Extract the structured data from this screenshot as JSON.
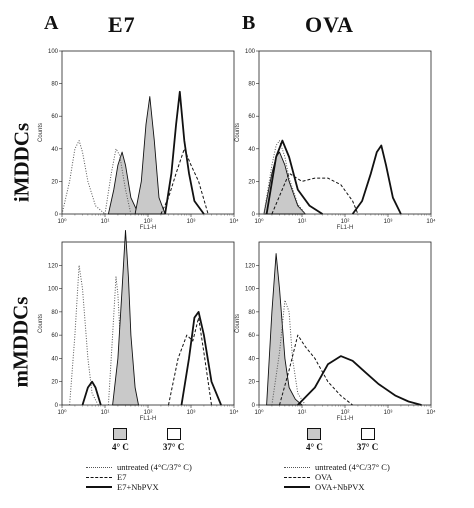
{
  "panels": {
    "A": {
      "letter": "A",
      "title": "E7"
    },
    "B": {
      "letter": "B",
      "title": "OVA"
    }
  },
  "rows": {
    "top": "iMDDCs",
    "bottom": "mMDDCs"
  },
  "axis": {
    "xlabel": "FL1-H",
    "ylabel": "Counts"
  },
  "temperature_key": {
    "A": {
      "cold": "4° C",
      "warm": "37° C"
    },
    "B": {
      "cold": "4° C",
      "warm": "37° C"
    }
  },
  "legend": {
    "A": [
      "untreated (4°C/37° C)",
      "E7",
      "E7+NbPVX"
    ],
    "B": [
      "untreated (4°C/37° C)",
      "OVA",
      "OVA+NbPVX"
    ]
  },
  "colors": {
    "fill": "#c9c9c9",
    "line": "#111111",
    "dotted": "#555555"
  },
  "chart_data": [
    {
      "type": "area",
      "panel": "A",
      "row": "iMDDCs",
      "xlabel": "FL1-H",
      "ylabel": "Counts",
      "xscale": "log",
      "xlim": [
        1,
        10000
      ],
      "ylim": [
        0,
        100
      ],
      "yticks": [
        0,
        20,
        40,
        60,
        80,
        100
      ],
      "xticks": [
        "10⁰",
        "10¹",
        "10²",
        "10³",
        "10⁴"
      ],
      "series": [
        {
          "style": "dotted",
          "x": [
            1,
            1.5,
            2,
            2.5,
            3,
            4,
            6,
            10
          ],
          "y": [
            0,
            20,
            40,
            45,
            38,
            20,
            5,
            0
          ]
        },
        {
          "style": "filled",
          "x": [
            12,
            16,
            20,
            25,
            30,
            40,
            60
          ],
          "y": [
            0,
            15,
            30,
            38,
            30,
            10,
            0
          ]
        },
        {
          "style": "dotted",
          "x": [
            10,
            14,
            18,
            22,
            30,
            40
          ],
          "y": [
            0,
            25,
            40,
            36,
            15,
            0
          ]
        },
        {
          "style": "filled",
          "x": [
            50,
            70,
            90,
            110,
            140,
            180,
            250
          ],
          "y": [
            0,
            20,
            55,
            72,
            45,
            10,
            0
          ]
        },
        {
          "style": "dashed",
          "x": [
            200,
            300,
            450,
            700,
            1000,
            1500,
            2500
          ],
          "y": [
            0,
            10,
            25,
            40,
            30,
            20,
            0
          ]
        },
        {
          "style": "solid",
          "x": [
            250,
            350,
            450,
            550,
            700,
            900,
            1200,
            2000
          ],
          "y": [
            0,
            25,
            55,
            75,
            45,
            25,
            8,
            0
          ]
        }
      ]
    },
    {
      "type": "area",
      "panel": "B",
      "row": "iMDDCs",
      "xlabel": "FL1-H",
      "ylabel": "Counts",
      "xscale": "log",
      "xlim": [
        1,
        10000
      ],
      "ylim": [
        0,
        100
      ],
      "yticks": [
        0,
        20,
        40,
        60,
        80,
        100
      ],
      "xticks": [
        "10⁰",
        "10¹",
        "10²",
        "10³",
        "10⁴"
      ],
      "series": [
        {
          "style": "filled",
          "x": [
            1.3,
            2,
            2.5,
            3,
            4,
            5,
            8,
            12
          ],
          "y": [
            0,
            25,
            35,
            38,
            30,
            20,
            5,
            0
          ]
        },
        {
          "style": "dotted",
          "x": [
            1.3,
            2,
            2.5,
            3,
            4,
            5,
            8,
            12
          ],
          "y": [
            0,
            30,
            42,
            45,
            35,
            22,
            6,
            0
          ]
        },
        {
          "style": "solid",
          "x": [
            1.5,
            2.5,
            3.5,
            5,
            8,
            15,
            30
          ],
          "y": [
            0,
            35,
            45,
            35,
            15,
            5,
            0
          ]
        },
        {
          "style": "dashed",
          "x": [
            2,
            5,
            10,
            20,
            40,
            80,
            150,
            200
          ],
          "y": [
            0,
            25,
            20,
            22,
            22,
            18,
            8,
            0
          ]
        },
        {
          "style": "solid",
          "x": [
            150,
            250,
            400,
            550,
            700,
            900,
            1300,
            2000
          ],
          "y": [
            0,
            8,
            25,
            38,
            42,
            30,
            10,
            0
          ]
        }
      ]
    },
    {
      "type": "area",
      "panel": "A",
      "row": "mMDDCs",
      "xlabel": "FL1-H",
      "ylabel": "Counts",
      "xscale": "log",
      "xlim": [
        1,
        10000
      ],
      "ylim": [
        0,
        140
      ],
      "yticks": [
        0,
        20,
        40,
        60,
        80,
        100,
        120
      ],
      "xticks": [
        "10⁰",
        "10¹",
        "10²",
        "10³",
        "10⁴"
      ],
      "series": [
        {
          "style": "dotted",
          "x": [
            1.5,
            2,
            2.5,
            3,
            4,
            5,
            7
          ],
          "y": [
            0,
            60,
            120,
            100,
            40,
            10,
            0
          ]
        },
        {
          "style": "solid",
          "x": [
            3,
            4,
            5,
            6,
            8
          ],
          "y": [
            0,
            15,
            20,
            15,
            0
          ]
        },
        {
          "style": "dotted",
          "x": [
            12,
            15,
            18,
            20,
            24,
            30
          ],
          "y": [
            0,
            60,
            110,
            95,
            40,
            0
          ]
        },
        {
          "style": "filled",
          "x": [
            15,
            20,
            25,
            30,
            35,
            40,
            50,
            60
          ],
          "y": [
            0,
            40,
            100,
            150,
            110,
            60,
            15,
            0
          ]
        },
        {
          "style": "dashed",
          "x": [
            300,
            500,
            800,
            1100,
            1500,
            2000,
            3000
          ],
          "y": [
            0,
            40,
            60,
            55,
            75,
            45,
            0
          ]
        },
        {
          "style": "solid",
          "x": [
            600,
            900,
            1200,
            1500,
            2000,
            3000,
            5000
          ],
          "y": [
            0,
            40,
            75,
            80,
            60,
            20,
            0
          ]
        }
      ]
    },
    {
      "type": "area",
      "panel": "B",
      "row": "mMDDCs",
      "xlabel": "FL1-H",
      "ylabel": "Counts",
      "xscale": "log",
      "xlim": [
        1,
        10000
      ],
      "ylim": [
        0,
        140
      ],
      "yticks": [
        0,
        20,
        40,
        60,
        80,
        100,
        120
      ],
      "xticks": [
        "10⁰",
        "10¹",
        "10²",
        "10³",
        "10⁴"
      ],
      "series": [
        {
          "style": "filled",
          "x": [
            1.5,
            2,
            2.5,
            3,
            4,
            5,
            7,
            10
          ],
          "y": [
            0,
            80,
            130,
            100,
            40,
            15,
            5,
            0
          ]
        },
        {
          "style": "dotted",
          "x": [
            2,
            3,
            4,
            5,
            6,
            8,
            12
          ],
          "y": [
            0,
            45,
            90,
            80,
            40,
            10,
            0
          ]
        },
        {
          "style": "dashed",
          "x": [
            3,
            5,
            8,
            12,
            20,
            40,
            80,
            150
          ],
          "y": [
            0,
            30,
            60,
            50,
            40,
            20,
            8,
            0
          ]
        },
        {
          "style": "solid",
          "x": [
            8,
            20,
            40,
            80,
            150,
            300,
            600,
            1500,
            3000,
            6000
          ],
          "y": [
            0,
            15,
            35,
            42,
            38,
            28,
            18,
            8,
            3,
            0
          ]
        }
      ]
    }
  ]
}
